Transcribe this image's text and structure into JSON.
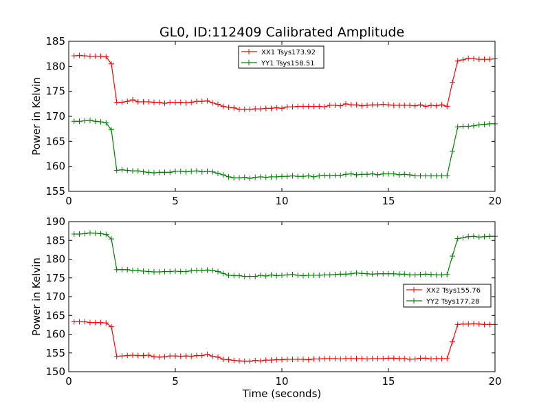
{
  "figure_title": "GL0, ID:112409 Calibrated Amplitude",
  "chart_data": [
    {
      "type": "line",
      "title": "GL0, ID:112409 Calibrated Amplitude",
      "xlabel": "",
      "ylabel": "Power in Kelvin",
      "xlim": [
        0,
        20
      ],
      "ylim": [
        155,
        185
      ],
      "xticks": [
        0,
        5,
        10,
        15,
        20
      ],
      "yticks": [
        155,
        160,
        165,
        170,
        175,
        180,
        185
      ],
      "grid": false,
      "legend_position": "top-center",
      "x": [
        0.25,
        0.5,
        0.75,
        1.0,
        1.25,
        1.5,
        1.75,
        2.0,
        2.25,
        2.5,
        2.75,
        3.0,
        3.25,
        3.5,
        3.75,
        4.0,
        4.25,
        4.5,
        4.75,
        5.0,
        5.25,
        5.5,
        5.75,
        6.0,
        6.25,
        6.5,
        6.75,
        7.0,
        7.25,
        7.5,
        7.75,
        8.0,
        8.25,
        8.5,
        8.75,
        9.0,
        9.25,
        9.5,
        9.75,
        10.0,
        10.25,
        10.5,
        10.75,
        11.0,
        11.25,
        11.5,
        11.75,
        12.0,
        12.25,
        12.5,
        12.75,
        13.0,
        13.25,
        13.5,
        13.75,
        14.0,
        14.25,
        14.5,
        14.75,
        15.0,
        15.25,
        15.5,
        15.75,
        16.0,
        16.25,
        16.5,
        16.75,
        17.0,
        17.25,
        17.5,
        17.75,
        18.0,
        18.25,
        18.5,
        18.75,
        19.0,
        19.25,
        19.5,
        19.75,
        20.0
      ],
      "series": [
        {
          "name": "XX1 Tsys173.92",
          "color": "#ff0000",
          "values": [
            182.1,
            182.2,
            182.1,
            182.0,
            182.0,
            182.0,
            181.9,
            180.5,
            172.8,
            172.8,
            173.0,
            173.3,
            172.9,
            172.9,
            172.9,
            172.8,
            172.8,
            172.6,
            172.8,
            172.8,
            172.8,
            172.7,
            172.8,
            173.0,
            173.0,
            173.1,
            172.7,
            172.4,
            172.0,
            171.8,
            171.7,
            171.4,
            171.4,
            171.4,
            171.5,
            171.5,
            171.6,
            171.6,
            171.7,
            171.6,
            171.9,
            171.9,
            172.0,
            172.0,
            172.0,
            172.0,
            172.0,
            171.9,
            172.2,
            172.2,
            172.1,
            172.5,
            172.3,
            172.3,
            172.1,
            172.2,
            172.3,
            172.3,
            172.4,
            172.3,
            172.2,
            172.2,
            172.2,
            172.2,
            172.1,
            172.3,
            172.0,
            172.2,
            172.1,
            172.3,
            172.0,
            176.8,
            181.1,
            181.3,
            181.6,
            181.5,
            181.4,
            181.4,
            181.4,
            181.5
          ]
        },
        {
          "name": "YY1 Tsys158.51",
          "color": "#008000",
          "values": [
            169.0,
            169.0,
            169.1,
            169.2,
            169.0,
            168.9,
            168.7,
            167.3,
            159.2,
            159.3,
            159.2,
            159.1,
            159.1,
            158.9,
            158.8,
            158.7,
            158.8,
            158.8,
            158.8,
            159.0,
            159.0,
            158.9,
            159.0,
            159.1,
            158.9,
            159.0,
            158.9,
            158.6,
            158.3,
            157.9,
            157.7,
            157.7,
            157.8,
            157.6,
            157.8,
            157.9,
            157.8,
            157.9,
            157.9,
            158.0,
            158.0,
            158.1,
            158.0,
            158.0,
            158.1,
            157.9,
            158.1,
            158.2,
            158.1,
            158.2,
            158.2,
            158.4,
            158.5,
            158.3,
            158.4,
            158.4,
            158.5,
            158.3,
            158.5,
            158.5,
            158.5,
            158.3,
            158.4,
            158.3,
            158.1,
            158.1,
            158.1,
            158.1,
            158.1,
            158.1,
            158.1,
            163.0,
            167.9,
            168.0,
            168.0,
            168.1,
            168.3,
            168.4,
            168.5,
            168.5
          ]
        }
      ]
    },
    {
      "type": "line",
      "title": "",
      "xlabel": "Time (seconds)",
      "ylabel": "Power in Kelvin",
      "xlim": [
        0,
        20
      ],
      "ylim": [
        150,
        190
      ],
      "xticks": [
        0,
        5,
        10,
        15,
        20
      ],
      "yticks": [
        150,
        155,
        160,
        165,
        170,
        175,
        180,
        185,
        190
      ],
      "grid": false,
      "legend_position": "center-right",
      "x": [
        0.25,
        0.5,
        0.75,
        1.0,
        1.25,
        1.5,
        1.75,
        2.0,
        2.25,
        2.5,
        2.75,
        3.0,
        3.25,
        3.5,
        3.75,
        4.0,
        4.25,
        4.5,
        4.75,
        5.0,
        5.25,
        5.5,
        5.75,
        6.0,
        6.25,
        6.5,
        6.75,
        7.0,
        7.25,
        7.5,
        7.75,
        8.0,
        8.25,
        8.5,
        8.75,
        9.0,
        9.25,
        9.5,
        9.75,
        10.0,
        10.25,
        10.5,
        10.75,
        11.0,
        11.25,
        11.5,
        11.75,
        12.0,
        12.25,
        12.5,
        12.75,
        13.0,
        13.25,
        13.5,
        13.75,
        14.0,
        14.25,
        14.5,
        14.75,
        15.0,
        15.25,
        15.5,
        15.75,
        16.0,
        16.25,
        16.5,
        16.75,
        17.0,
        17.25,
        17.5,
        17.75,
        18.0,
        18.25,
        18.5,
        18.75,
        19.0,
        19.25,
        19.5,
        19.75,
        20.0
      ],
      "series": [
        {
          "name": "XX2 Tsys155.76",
          "color": "#ff0000",
          "values": [
            163.3,
            163.3,
            163.3,
            163.1,
            163.1,
            163.1,
            163.0,
            162.0,
            154.1,
            154.2,
            154.3,
            154.4,
            154.3,
            154.3,
            154.4,
            154.0,
            153.9,
            154.0,
            154.2,
            154.2,
            154.1,
            154.2,
            154.1,
            154.3,
            154.3,
            154.6,
            154.1,
            153.9,
            153.3,
            153.2,
            153.0,
            152.9,
            152.8,
            152.8,
            153.0,
            152.9,
            153.1,
            153.1,
            153.2,
            153.2,
            153.3,
            153.3,
            153.3,
            153.3,
            153.2,
            153.4,
            153.4,
            153.5,
            153.5,
            153.5,
            153.4,
            153.5,
            153.5,
            153.5,
            153.5,
            153.4,
            153.5,
            153.5,
            153.5,
            153.6,
            153.6,
            153.5,
            153.5,
            153.3,
            153.4,
            153.6,
            153.6,
            153.4,
            153.5,
            153.5,
            153.5,
            158.0,
            162.6,
            162.7,
            162.7,
            162.8,
            162.7,
            162.6,
            162.6,
            162.6
          ]
        },
        {
          "name": "YY2 Tsys177.28",
          "color": "#008000",
          "values": [
            186.7,
            186.7,
            186.8,
            187.0,
            186.9,
            186.8,
            186.6,
            185.4,
            177.2,
            177.2,
            177.2,
            177.0,
            177.0,
            176.8,
            176.7,
            176.6,
            176.6,
            176.7,
            176.7,
            176.8,
            176.7,
            176.7,
            176.9,
            177.0,
            177.0,
            177.1,
            177.0,
            176.7,
            176.2,
            175.7,
            175.6,
            175.6,
            175.4,
            175.4,
            175.4,
            175.7,
            175.5,
            175.8,
            175.6,
            175.7,
            175.8,
            175.9,
            175.7,
            175.6,
            175.7,
            175.7,
            175.7,
            175.8,
            175.8,
            175.9,
            176.0,
            176.0,
            176.1,
            176.3,
            176.2,
            176.1,
            176.0,
            176.1,
            176.1,
            176.1,
            176.1,
            176.0,
            176.0,
            175.8,
            175.8,
            175.9,
            176.0,
            175.9,
            175.8,
            175.8,
            175.9,
            180.8,
            185.5,
            185.7,
            186.0,
            186.1,
            185.9,
            186.0,
            186.1,
            186.1
          ]
        }
      ]
    }
  ]
}
